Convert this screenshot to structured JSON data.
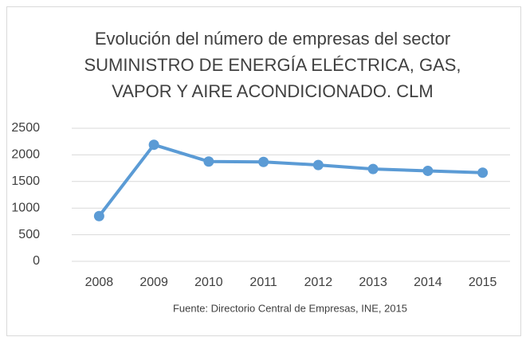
{
  "chart_data": {
    "type": "line",
    "title": [
      "Evolución del número de empresas del sector",
      "SUMINISTRO DE ENERGÍA ELÉCTRICA, GAS,",
      "VAPOR Y AIRE ACONDICIONADO. CLM"
    ],
    "source": "Fuente: Directorio Central de Empresas, INE, 2015",
    "categories": [
      "2008",
      "2009",
      "2010",
      "2011",
      "2012",
      "2013",
      "2014",
      "2015"
    ],
    "series": [
      {
        "color": "#5b9bd5",
        "values": [
          850,
          2190,
          1875,
          1868,
          1810,
          1735,
          1700,
          1665
        ]
      }
    ],
    "ylim": [
      0,
      2500
    ],
    "yticks": [
      0,
      500,
      1000,
      1500,
      2000,
      2500
    ],
    "grid": true
  }
}
